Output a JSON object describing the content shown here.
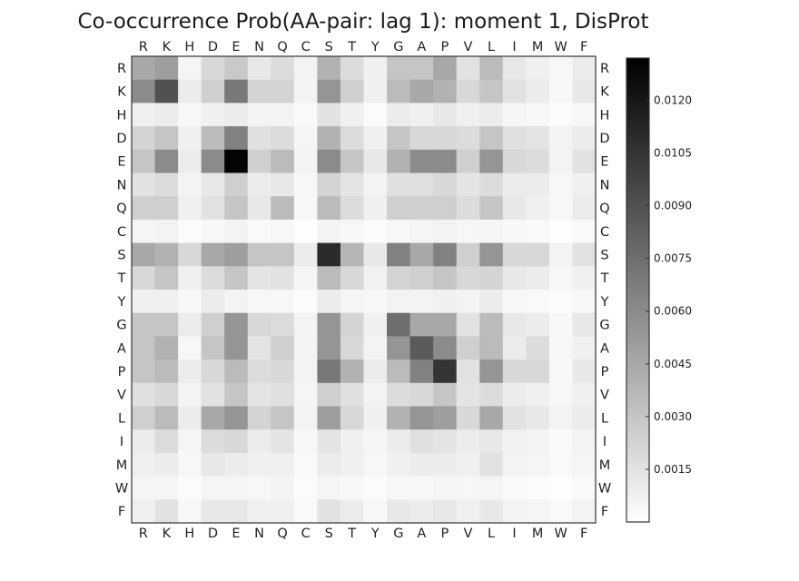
{
  "chart_data": {
    "type": "heatmap",
    "title": "Co-occurrence Prob(AA-pair: lag 1): moment 1, DisProt",
    "row_labels": [
      "R",
      "K",
      "H",
      "D",
      "E",
      "N",
      "Q",
      "C",
      "S",
      "T",
      "Y",
      "G",
      "A",
      "P",
      "V",
      "L",
      "I",
      "M",
      "W",
      "F"
    ],
    "col_labels": [
      "R",
      "K",
      "H",
      "D",
      "E",
      "N",
      "Q",
      "C",
      "S",
      "T",
      "Y",
      "G",
      "A",
      "P",
      "V",
      "L",
      "I",
      "M",
      "W",
      "F"
    ],
    "values": [
      [
        0.0045,
        0.005,
        0.0005,
        0.002,
        0.0028,
        0.0012,
        0.0018,
        0.0006,
        0.004,
        0.0018,
        0.0008,
        0.003,
        0.003,
        0.0045,
        0.0015,
        0.0035,
        0.0012,
        0.0008,
        0.0004,
        0.001
      ],
      [
        0.006,
        0.009,
        0.001,
        0.0025,
        0.007,
        0.0022,
        0.0022,
        0.0006,
        0.0055,
        0.0025,
        0.0008,
        0.0035,
        0.0045,
        0.004,
        0.002,
        0.003,
        0.0015,
        0.001,
        0.0004,
        0.0012
      ],
      [
        0.0008,
        0.001,
        0.0004,
        0.0008,
        0.001,
        0.0006,
        0.0006,
        0.0003,
        0.0015,
        0.0008,
        0.0002,
        0.001,
        0.0008,
        0.0012,
        0.0008,
        0.001,
        0.0005,
        0.0004,
        0.0002,
        0.0004
      ],
      [
        0.0022,
        0.003,
        0.0008,
        0.0035,
        0.0065,
        0.0016,
        0.0018,
        0.0005,
        0.004,
        0.0018,
        0.0008,
        0.003,
        0.002,
        0.002,
        0.0018,
        0.003,
        0.0016,
        0.0014,
        0.0006,
        0.001
      ],
      [
        0.003,
        0.006,
        0.001,
        0.006,
        0.013,
        0.0025,
        0.0035,
        0.0006,
        0.006,
        0.003,
        0.0012,
        0.004,
        0.006,
        0.006,
        0.0025,
        0.0055,
        0.002,
        0.0018,
        0.0006,
        0.0015
      ],
      [
        0.0015,
        0.0018,
        0.0006,
        0.0012,
        0.0025,
        0.001,
        0.0012,
        0.0004,
        0.0022,
        0.0014,
        0.0006,
        0.0016,
        0.0016,
        0.002,
        0.0014,
        0.0018,
        0.001,
        0.001,
        0.0004,
        0.0008
      ],
      [
        0.0025,
        0.0025,
        0.0008,
        0.0015,
        0.003,
        0.0012,
        0.0035,
        0.0004,
        0.0035,
        0.0018,
        0.0008,
        0.0025,
        0.0025,
        0.0025,
        0.0018,
        0.003,
        0.0012,
        0.0008,
        0.0004,
        0.001
      ],
      [
        0.0005,
        0.0006,
        0.0002,
        0.0004,
        0.0006,
        0.0003,
        0.0004,
        0.0001,
        0.0006,
        0.0004,
        0.0002,
        0.0004,
        0.0005,
        0.0006,
        0.0004,
        0.0005,
        0.0004,
        0.0003,
        0.0001,
        0.0003
      ],
      [
        0.0045,
        0.004,
        0.002,
        0.0045,
        0.005,
        0.003,
        0.003,
        0.001,
        0.011,
        0.0038,
        0.0012,
        0.0065,
        0.0045,
        0.0065,
        0.0025,
        0.0055,
        0.002,
        0.002,
        0.0006,
        0.0015
      ],
      [
        0.002,
        0.003,
        0.0008,
        0.0018,
        0.003,
        0.0014,
        0.0015,
        0.0005,
        0.0035,
        0.002,
        0.0007,
        0.0022,
        0.0025,
        0.003,
        0.002,
        0.0022,
        0.0012,
        0.001,
        0.0004,
        0.0008
      ],
      [
        0.0008,
        0.0008,
        0.0004,
        0.001,
        0.0006,
        0.0004,
        0.0004,
        0.0002,
        0.001,
        0.0005,
        0.0004,
        0.0006,
        0.0006,
        0.0008,
        0.0006,
        0.001,
        0.0004,
        0.0003,
        0.0002,
        0.0004
      ],
      [
        0.003,
        0.003,
        0.001,
        0.0025,
        0.0055,
        0.002,
        0.0018,
        0.0006,
        0.0055,
        0.0022,
        0.0008,
        0.0075,
        0.0045,
        0.0045,
        0.0015,
        0.0035,
        0.0012,
        0.001,
        0.0004,
        0.0012
      ],
      [
        0.003,
        0.004,
        0.0004,
        0.003,
        0.0055,
        0.0014,
        0.0025,
        0.0006,
        0.0055,
        0.002,
        0.0006,
        0.0055,
        0.0085,
        0.006,
        0.0025,
        0.0035,
        0.001,
        0.0018,
        0.0004,
        0.0008
      ],
      [
        0.003,
        0.0035,
        0.001,
        0.002,
        0.0035,
        0.0018,
        0.002,
        0.0006,
        0.007,
        0.004,
        0.001,
        0.0035,
        0.0065,
        0.0105,
        0.0015,
        0.0055,
        0.002,
        0.002,
        0.0004,
        0.0012
      ],
      [
        0.0016,
        0.002,
        0.0006,
        0.0015,
        0.003,
        0.0014,
        0.0016,
        0.0005,
        0.0025,
        0.0016,
        0.0006,
        0.0018,
        0.002,
        0.003,
        0.0014,
        0.0018,
        0.001,
        0.0008,
        0.0004,
        0.0008
      ],
      [
        0.0025,
        0.0035,
        0.001,
        0.0045,
        0.0055,
        0.0022,
        0.003,
        0.0006,
        0.005,
        0.002,
        0.0008,
        0.004,
        0.0055,
        0.005,
        0.002,
        0.0045,
        0.0015,
        0.0012,
        0.0006,
        0.001
      ],
      [
        0.001,
        0.0018,
        0.0005,
        0.0018,
        0.002,
        0.001,
        0.0014,
        0.0004,
        0.0014,
        0.0008,
        0.0005,
        0.001,
        0.0016,
        0.0014,
        0.001,
        0.0012,
        0.0007,
        0.0006,
        0.0003,
        0.0006
      ],
      [
        0.0008,
        0.001,
        0.0004,
        0.0012,
        0.001,
        0.0008,
        0.0008,
        0.0003,
        0.001,
        0.0008,
        0.0004,
        0.0008,
        0.001,
        0.001,
        0.0008,
        0.0015,
        0.0006,
        0.0005,
        0.0003,
        0.0005
      ],
      [
        0.0005,
        0.0005,
        0.0002,
        0.0005,
        0.0005,
        0.0004,
        0.0006,
        0.0002,
        0.0005,
        0.0004,
        0.0002,
        0.0004,
        0.0004,
        0.0005,
        0.0004,
        0.0005,
        0.0003,
        0.0002,
        0.0001,
        0.0003
      ],
      [
        0.0008,
        0.0015,
        0.0004,
        0.0012,
        0.0012,
        0.0008,
        0.0008,
        0.0003,
        0.0015,
        0.001,
        0.0004,
        0.0012,
        0.001,
        0.0012,
        0.0008,
        0.0012,
        0.0006,
        0.0005,
        0.0003,
        0.0006
      ]
    ],
    "colorbar": {
      "min": 0.0,
      "max": 0.0132,
      "ticks": [
        0.0015,
        0.003,
        0.0045,
        0.006,
        0.0075,
        0.009,
        0.0105,
        0.012
      ],
      "tick_labels": [
        "0.0015",
        "0.0030",
        "0.0045",
        "0.0060",
        "0.0075",
        "0.0090",
        "0.0105",
        "0.0120"
      ],
      "colormap": "grays (white = low, black = high)"
    },
    "grid": false
  }
}
